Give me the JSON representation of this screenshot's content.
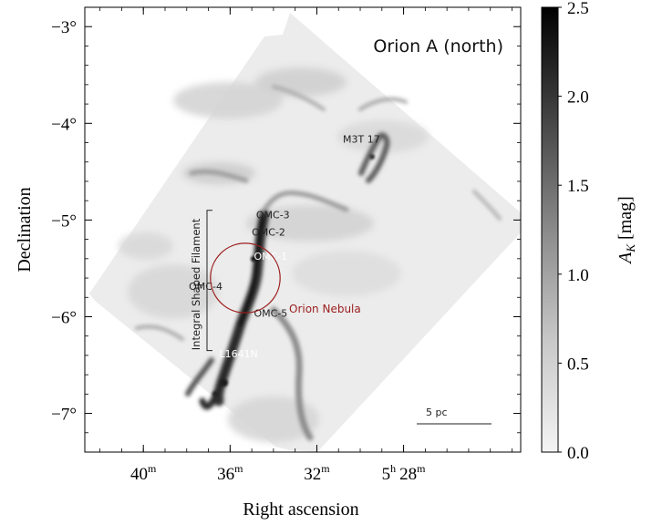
{
  "chart_data": {
    "type": "heatmap",
    "title": "Orion A (north)",
    "xlabel": "Right ascension",
    "ylabel": "Declination",
    "x_ticks": [
      {
        "text": "40",
        "sup": "m",
        "ra_min": 40
      },
      {
        "text": "36",
        "sup": "m",
        "ra_min": 36
      },
      {
        "text": "32",
        "sup": "m",
        "ra_min": 32
      },
      {
        "text": "5",
        "sup": "h",
        "text2": "28",
        "sup2": "m",
        "ra_min": 28
      }
    ],
    "y_ticks": [
      {
        "text": "−3°",
        "dec": -3
      },
      {
        "text": "−4°",
        "dec": -4
      },
      {
        "text": "−5°",
        "dec": -5
      },
      {
        "text": "−6°",
        "dec": -6
      },
      {
        "text": "−7°",
        "dec": -7
      }
    ],
    "xlim_ra_min": [
      42.7,
      22.6
    ],
    "ylim_dec_deg": [
      -7.4,
      -2.8
    ],
    "colorbar": {
      "label_main": "A",
      "label_sub": "K",
      "label_unit": "[mag]",
      "range": [
        0.0,
        2.5
      ],
      "ticks": [
        "0.0",
        "0.5",
        "1.0",
        "1.5",
        "2.0",
        "2.5"
      ],
      "tick_values": [
        0.0,
        0.5,
        1.0,
        1.5,
        2.0,
        2.5
      ],
      "colormap": "gray_r"
    },
    "annotations": [
      {
        "text": "M3T 17",
        "ra_min": 30.8,
        "dec": -4.2,
        "color": "#222222"
      },
      {
        "text": "OMC-3",
        "ra_min": 34.8,
        "dec": -4.98,
        "color": "#222222"
      },
      {
        "text": "OMC-2",
        "ra_min": 35.0,
        "dec": -5.16,
        "color": "#222222"
      },
      {
        "text": "OMC-1",
        "ra_min": 34.9,
        "dec": -5.41,
        "color": "#ffffff"
      },
      {
        "text": "OMC-4",
        "ra_min": 37.9,
        "dec": -5.72,
        "color": "#222222"
      },
      {
        "text": "OMC-5",
        "ra_min": 34.9,
        "dec": -6.0,
        "color": "#222222"
      },
      {
        "text": "L1641N",
        "ra_min": 36.5,
        "dec": -6.42,
        "color": "#ffffff"
      }
    ],
    "circle": {
      "label": "Orion Nebula",
      "color": "#9b1c1c",
      "center_ra_min": 35.3,
      "center_dec": -5.6,
      "radius_deg": 0.36
    },
    "bracket": {
      "label": "Integral Shaped Filament",
      "dec_range": [
        -6.35,
        -4.9
      ]
    },
    "scalebar": {
      "label": "5 pc"
    }
  }
}
